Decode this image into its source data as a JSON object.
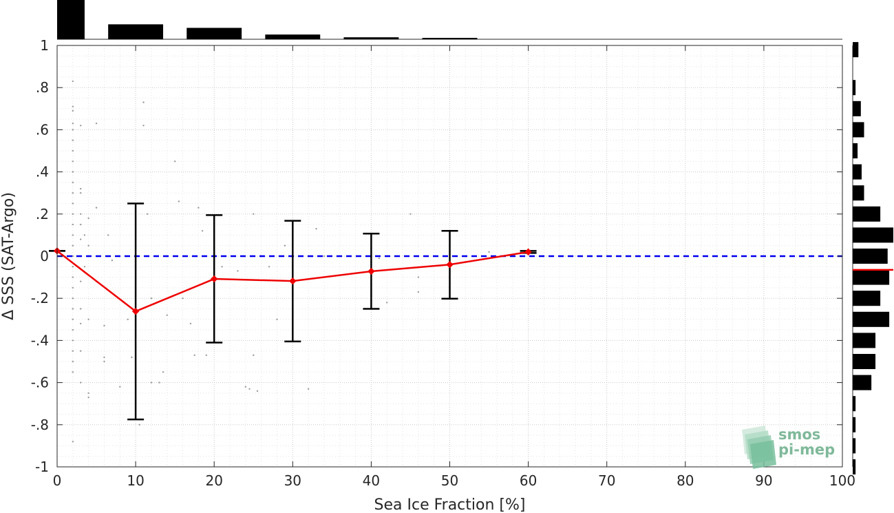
{
  "chart_data": {
    "type": "line",
    "xlabel": "Sea Ice Fraction [%]",
    "ylabel": "Δ SSS (SAT-Argo)",
    "xlim": [
      0,
      100
    ],
    "ylim": [
      -1,
      1
    ],
    "x_ticks": [
      0,
      10,
      20,
      30,
      40,
      50,
      60,
      70,
      80,
      90,
      100
    ],
    "y_ticks": [
      -1,
      -0.8,
      -0.6,
      -0.4,
      -0.2,
      0,
      0.2,
      0.4,
      0.6,
      0.8,
      1
    ],
    "grid": true,
    "zero_line_color": "#0000ee",
    "series": [
      {
        "color": "#ee0000",
        "x": [
          0,
          10,
          20,
          30,
          40,
          50,
          60
        ],
        "values": [
          0.025,
          -0.262,
          -0.108,
          -0.118,
          -0.072,
          -0.04,
          0.02
        ],
        "error_upper": [
          0.025,
          0.25,
          0.195,
          0.168,
          0.107,
          0.12,
          0.025
        ],
        "error_lower": [
          0.025,
          -0.775,
          -0.41,
          -0.405,
          -0.25,
          -0.202,
          0.015
        ]
      }
    ],
    "scatter_points": [
      [
        2,
        0.83
      ],
      [
        2,
        0.71
      ],
      [
        2,
        0.69
      ],
      [
        2,
        0.63
      ],
      [
        2,
        0.6
      ],
      [
        2,
        0.55
      ],
      [
        2,
        0.5
      ],
      [
        2,
        0.45
      ],
      [
        2,
        0.4
      ],
      [
        2,
        0.35
      ],
      [
        2,
        0.3
      ],
      [
        2,
        0.25
      ],
      [
        2,
        0.2
      ],
      [
        2,
        0.15
      ],
      [
        2,
        0.1
      ],
      [
        2,
        0.05
      ],
      [
        2,
        0.0
      ],
      [
        2,
        -0.05
      ],
      [
        2,
        -0.1
      ],
      [
        2,
        -0.15
      ],
      [
        2,
        -0.2
      ],
      [
        2,
        -0.25
      ],
      [
        2,
        -0.3
      ],
      [
        2,
        -0.35
      ],
      [
        2,
        -0.4
      ],
      [
        2,
        -0.45
      ],
      [
        2,
        -0.5
      ],
      [
        2,
        -0.55
      ],
      [
        2,
        -0.88
      ],
      [
        3,
        0.62
      ],
      [
        3,
        0.32
      ],
      [
        3,
        0.3
      ],
      [
        3,
        0.2
      ],
      [
        3,
        0.15
      ],
      [
        3,
        0.08
      ],
      [
        3,
        0.0
      ],
      [
        3,
        -0.12
      ],
      [
        3,
        -0.25
      ],
      [
        3,
        -0.32
      ],
      [
        3,
        -0.45
      ],
      [
        3,
        -0.6
      ],
      [
        3.5,
        0.1
      ],
      [
        3.5,
        -0.05
      ],
      [
        4,
        0.18
      ],
      [
        4,
        0.05
      ],
      [
        4,
        -0.3
      ],
      [
        4,
        -0.65
      ],
      [
        4,
        -0.67
      ],
      [
        5,
        0.63
      ],
      [
        5,
        0.23
      ],
      [
        5,
        -0.12
      ],
      [
        6,
        -0.33
      ],
      [
        6,
        -0.48
      ],
      [
        6,
        -0.5
      ],
      [
        6.5,
        0.1
      ],
      [
        7,
        -0.02
      ],
      [
        8,
        -0.62
      ],
      [
        9,
        -0.3
      ],
      [
        9.5,
        -0.48
      ],
      [
        10.5,
        -0.8
      ],
      [
        11,
        0.73
      ],
      [
        11,
        0.62
      ],
      [
        11.5,
        0.2
      ],
      [
        12,
        -0.2
      ],
      [
        12,
        -0.6
      ],
      [
        13,
        -0.6
      ],
      [
        13.5,
        -0.55
      ],
      [
        14,
        -0.28
      ],
      [
        15,
        0.45
      ],
      [
        15.5,
        0.26
      ],
      [
        16,
        -0.2
      ],
      [
        17,
        -0.32
      ],
      [
        17.5,
        -0.47
      ],
      [
        18,
        0.23
      ],
      [
        18.5,
        0.12
      ],
      [
        19,
        -0.47
      ],
      [
        20,
        -0.2
      ],
      [
        21,
        -0.05
      ],
      [
        23,
        -0.07
      ],
      [
        24,
        -0.62
      ],
      [
        24.5,
        -0.63
      ],
      [
        25,
        0.2
      ],
      [
        25,
        -0.47
      ],
      [
        25.5,
        -0.64
      ],
      [
        26,
        0.0
      ],
      [
        27,
        -0.05
      ],
      [
        28,
        -0.3
      ],
      [
        29,
        0.05
      ],
      [
        32,
        -0.63
      ],
      [
        33,
        0.13
      ],
      [
        34,
        0.0
      ],
      [
        40,
        0.0
      ],
      [
        41,
        -0.01
      ],
      [
        42,
        -0.22
      ],
      [
        45,
        0.2
      ],
      [
        46,
        -0.1
      ],
      [
        46,
        -0.17
      ],
      [
        55,
        0.02
      ]
    ],
    "top_histogram": {
      "bin_left": [
        0,
        6.5,
        16.5,
        26.5,
        36.5,
        46.5
      ],
      "bin_right": [
        3.5,
        13.5,
        23.5,
        33.5,
        43.5,
        53.5
      ],
      "relative_height": [
        1.0,
        0.38,
        0.29,
        0.12,
        0.05,
        0.03
      ]
    },
    "right_histogram": {
      "bin_center": [
        0.98,
        0.8,
        0.7,
        0.6,
        0.5,
        0.4,
        0.3,
        0.2,
        0.1,
        0.0,
        -0.1,
        -0.2,
        -0.3,
        -0.4,
        -0.5,
        -0.6,
        -0.7,
        -0.8,
        -0.9,
        -1.0
      ],
      "relative_length": [
        0.14,
        0.07,
        0.2,
        0.28,
        0.12,
        0.22,
        0.28,
        0.68,
        1.0,
        0.86,
        0.9,
        0.68,
        0.9,
        0.56,
        0.56,
        0.46,
        0.07,
        0.07,
        0.07,
        0.07
      ],
      "mean_marker": -0.065,
      "mean_marker_color": "#ee0000"
    }
  },
  "logo": {
    "line1": "smos",
    "line2": "pi-mep",
    "color": "#7fb99a"
  }
}
